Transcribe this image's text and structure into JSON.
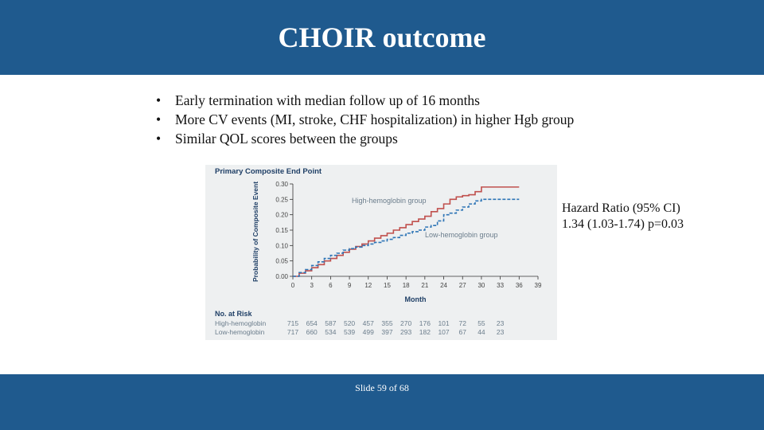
{
  "slide": {
    "title": "CHOIR outcome",
    "bullets": [
      "Early termination with median follow up of 16 months",
      "More CV events (MI, stroke, CHF hospitalization) in higher Hgb group",
      "Similar QOL scores between the groups"
    ],
    "hazard_text": "Hazard Ratio (95% CI)  1.34 (1.03-1.74) p=0.03",
    "footer": "Slide 59 of 68",
    "bullet_glyph": "•"
  },
  "colors": {
    "header_bg": "#1f5a8e",
    "high_series": "#c0504d",
    "low_series": "#2e75b6"
  },
  "chart_data": {
    "type": "line",
    "title": "Primary Composite End Point",
    "xlabel": "Month",
    "ylabel": "Probability of Composite Event",
    "xlim": [
      0,
      39
    ],
    "ylim": [
      0,
      0.3
    ],
    "xticks": [
      0,
      3,
      6,
      9,
      12,
      15,
      18,
      21,
      24,
      27,
      30,
      33,
      36,
      39
    ],
    "yticks": [
      "0.00",
      "0.05",
      "0.10",
      "0.15",
      "0.20",
      "0.25",
      "0.30"
    ],
    "series": [
      {
        "name": "High-hemoglobin group",
        "style": "solid",
        "x": [
          0,
          1,
          2,
          3,
          4,
          5,
          6,
          7,
          8,
          9,
          10,
          11,
          12,
          13,
          14,
          15,
          16,
          17,
          18,
          19,
          20,
          21,
          22,
          23,
          24,
          25,
          26,
          27,
          28,
          29,
          30,
          31,
          32,
          33,
          34,
          35,
          36
        ],
        "values": [
          0,
          0.01,
          0.018,
          0.028,
          0.038,
          0.05,
          0.058,
          0.068,
          0.078,
          0.088,
          0.097,
          0.105,
          0.115,
          0.124,
          0.132,
          0.14,
          0.15,
          0.158,
          0.168,
          0.178,
          0.186,
          0.195,
          0.21,
          0.22,
          0.235,
          0.25,
          0.258,
          0.262,
          0.265,
          0.275,
          0.29,
          0.29,
          0.29,
          0.29,
          0.29,
          0.29,
          0.29
        ]
      },
      {
        "name": "Low-hemoglobin group",
        "style": "dashed",
        "x": [
          0,
          1,
          2,
          3,
          4,
          5,
          6,
          7,
          8,
          9,
          10,
          11,
          12,
          13,
          14,
          15,
          16,
          17,
          18,
          19,
          20,
          21,
          22,
          23,
          24,
          25,
          26,
          27,
          28,
          29,
          30,
          31,
          32,
          33,
          34,
          35,
          36
        ],
        "values": [
          0,
          0.012,
          0.022,
          0.035,
          0.047,
          0.058,
          0.068,
          0.075,
          0.085,
          0.09,
          0.095,
          0.1,
          0.105,
          0.11,
          0.115,
          0.12,
          0.126,
          0.133,
          0.14,
          0.145,
          0.15,
          0.16,
          0.165,
          0.18,
          0.2,
          0.205,
          0.215,
          0.225,
          0.235,
          0.245,
          0.25,
          0.25,
          0.25,
          0.25,
          0.25,
          0.25,
          0.25
        ]
      }
    ],
    "annotations": [
      "High-hemoglobin group",
      "Low-hemoglobin group"
    ],
    "at_risk": {
      "title": "No. at Risk",
      "rows": [
        {
          "label": "High-hemoglobin",
          "values": [
            "715",
            "654",
            "587",
            "520",
            "457",
            "355",
            "270",
            "176",
            "101",
            "72",
            "55",
            "23"
          ]
        },
        {
          "label": "Low-hemoglobin",
          "values": [
            "717",
            "660",
            "534",
            "539",
            "499",
            "397",
            "293",
            "182",
            "107",
            "67",
            "44",
            "23"
          ]
        }
      ]
    }
  }
}
